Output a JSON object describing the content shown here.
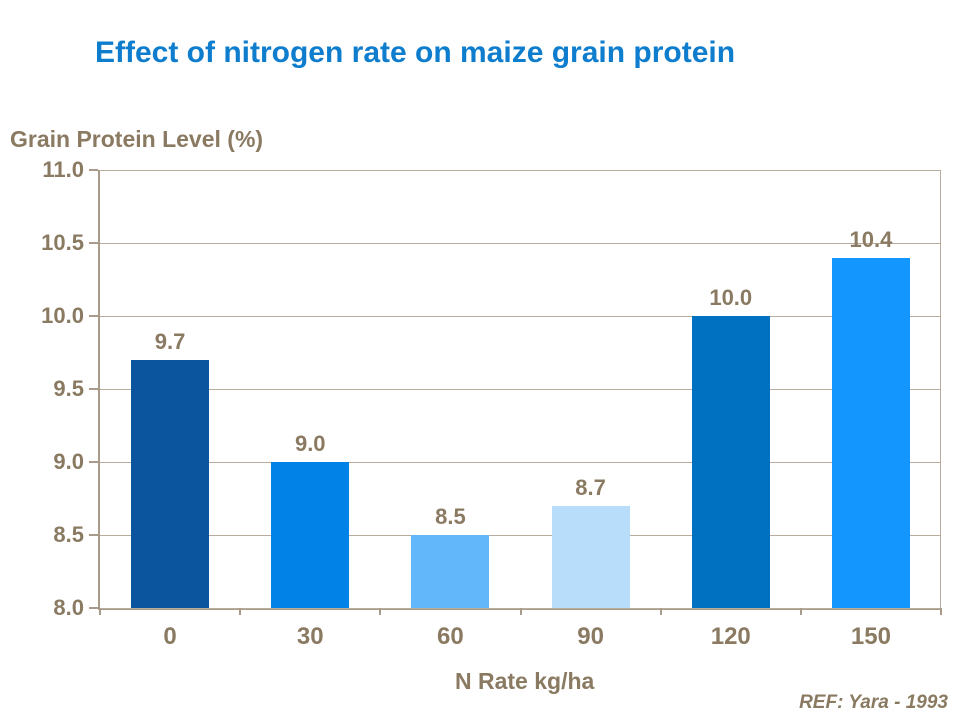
{
  "title": "Effect of nitrogen rate on maize grain protein",
  "footer": {
    "ref": "REF: Yara - 1993"
  },
  "colors": {
    "title_text": "#0F7DCD",
    "body_text": "#8A7A62",
    "gridline": "#B9AC9C",
    "axis_line": "#A89B89",
    "bars": [
      "#0B559F",
      "#0082E6",
      "#61B7FA",
      "#B8DDFB",
      "#0070C0",
      "#1496FF"
    ]
  },
  "chart_data": {
    "type": "bar",
    "title": "Effect of nitrogen rate on maize grain protein",
    "categories": [
      "0",
      "30",
      "60",
      "90",
      "120",
      "150"
    ],
    "values": [
      9.7,
      9.0,
      8.5,
      8.7,
      10.0,
      10.4
    ],
    "data_labels": [
      "9.7",
      "9.0",
      "8.5",
      "8.7",
      "10.0",
      "10.4"
    ],
    "xlabel": "N Rate kg/ha",
    "ylabel": "Grain Protein Level (%)",
    "ylim": [
      8.0,
      11.0
    ],
    "ytick_step": 0.5,
    "ytick_labels": [
      "11.0",
      "10.5",
      "10.0",
      "9.5",
      "9.0",
      "8.5",
      "8.0"
    ],
    "grid": "horizontal",
    "legend": "none"
  }
}
